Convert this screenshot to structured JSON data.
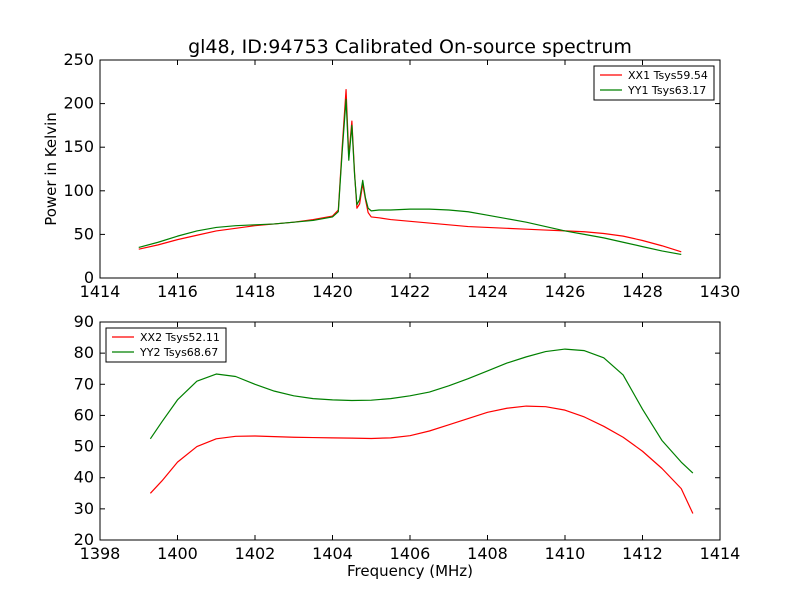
{
  "figure": {
    "title": "gl48, ID:94753 Calibrated On-source spectrum"
  },
  "chart_data": [
    {
      "type": "line",
      "title": "gl48, ID:94753 Calibrated On-source spectrum",
      "xlabel": "",
      "ylabel": "Power in Kelvin",
      "xlim": [
        1414,
        1430
      ],
      "ylim": [
        0,
        250
      ],
      "xticks": [
        1414,
        1416,
        1418,
        1420,
        1422,
        1424,
        1426,
        1428,
        1430
      ],
      "yticks": [
        0,
        50,
        100,
        150,
        200,
        250
      ],
      "grid": false,
      "legend_position": "top-right",
      "series": [
        {
          "name": "XX1 Tsys59.54",
          "color": "#ff0000",
          "x": [
            1415.0,
            1415.5,
            1416.0,
            1416.5,
            1417.0,
            1417.5,
            1418.0,
            1418.5,
            1419.0,
            1419.5,
            1420.0,
            1420.15,
            1420.25,
            1420.35,
            1420.42,
            1420.5,
            1420.57,
            1420.63,
            1420.7,
            1420.78,
            1420.85,
            1420.92,
            1421.0,
            1421.2,
            1421.5,
            1422.0,
            1422.5,
            1423.0,
            1423.5,
            1424.0,
            1424.5,
            1425.0,
            1425.5,
            1426.0,
            1426.5,
            1427.0,
            1427.5,
            1428.0,
            1428.5,
            1429.0
          ],
          "y": [
            33,
            38,
            44,
            49,
            54,
            57,
            60,
            62,
            64,
            67,
            71,
            78,
            150,
            216,
            140,
            180,
            120,
            80,
            85,
            108,
            90,
            75,
            70,
            69,
            67,
            65,
            63,
            61,
            59,
            58,
            57,
            56,
            55,
            54,
            53,
            51,
            48,
            43,
            37,
            30
          ]
        },
        {
          "name": "YY1 Tsys63.17",
          "color": "#008000",
          "x": [
            1415.0,
            1415.5,
            1416.0,
            1416.5,
            1417.0,
            1417.5,
            1418.0,
            1418.5,
            1419.0,
            1419.5,
            1420.0,
            1420.15,
            1420.25,
            1420.35,
            1420.42,
            1420.5,
            1420.57,
            1420.63,
            1420.7,
            1420.78,
            1420.85,
            1420.92,
            1421.0,
            1421.2,
            1421.5,
            1422.0,
            1422.5,
            1423.0,
            1423.5,
            1424.0,
            1424.5,
            1425.0,
            1425.5,
            1426.0,
            1426.5,
            1427.0,
            1427.5,
            1428.0,
            1428.5,
            1429.0
          ],
          "y": [
            35,
            41,
            48,
            54,
            58,
            60,
            61,
            62,
            64,
            66,
            70,
            76,
            145,
            205,
            135,
            175,
            118,
            84,
            90,
            112,
            92,
            80,
            77,
            78,
            78,
            79,
            79,
            78,
            76,
            72,
            68,
            64,
            59,
            54,
            50,
            46,
            41,
            36,
            31,
            27
          ]
        }
      ]
    },
    {
      "type": "line",
      "title": "",
      "xlabel": "Frequency (MHz)",
      "ylabel": "",
      "xlim": [
        1398,
        1414
      ],
      "ylim": [
        20,
        90
      ],
      "xticks": [
        1398,
        1400,
        1402,
        1404,
        1406,
        1408,
        1410,
        1412,
        1414
      ],
      "yticks": [
        20,
        30,
        40,
        50,
        60,
        70,
        80,
        90
      ],
      "grid": false,
      "legend_position": "top-left",
      "series": [
        {
          "name": "XX2 Tsys52.11",
          "color": "#ff0000",
          "x": [
            1399.3,
            1399.6,
            1400.0,
            1400.5,
            1401.0,
            1401.5,
            1402.0,
            1402.5,
            1403.0,
            1403.5,
            1404.0,
            1404.5,
            1405.0,
            1405.5,
            1406.0,
            1406.5,
            1407.0,
            1407.5,
            1408.0,
            1408.5,
            1409.0,
            1409.5,
            1410.0,
            1410.5,
            1411.0,
            1411.5,
            1412.0,
            1412.5,
            1413.0,
            1413.3
          ],
          "y": [
            35,
            39,
            45,
            50,
            52.5,
            53.3,
            53.4,
            53.2,
            53.0,
            52.9,
            52.8,
            52.7,
            52.6,
            52.8,
            53.5,
            55,
            57,
            59,
            61,
            62.3,
            63,
            62.8,
            61.7,
            59.5,
            56.5,
            53,
            48.5,
            43,
            36.5,
            28.5
          ]
        },
        {
          "name": "YY2 Tsys68.67",
          "color": "#008000",
          "x": [
            1399.3,
            1399.6,
            1400.0,
            1400.5,
            1401.0,
            1401.5,
            1402.0,
            1402.5,
            1403.0,
            1403.5,
            1404.0,
            1404.5,
            1405.0,
            1405.5,
            1406.0,
            1406.5,
            1407.0,
            1407.5,
            1408.0,
            1408.5,
            1409.0,
            1409.5,
            1410.0,
            1410.5,
            1411.0,
            1411.5,
            1412.0,
            1412.5,
            1413.0,
            1413.3
          ],
          "y": [
            52.5,
            58,
            65,
            71,
            73.3,
            72.5,
            70,
            67.8,
            66.3,
            65.4,
            65.0,
            64.8,
            64.9,
            65.4,
            66.3,
            67.5,
            69.5,
            71.8,
            74.3,
            76.8,
            78.8,
            80.5,
            81.3,
            80.8,
            78.5,
            73,
            62,
            52,
            45,
            41.5
          ]
        }
      ]
    }
  ]
}
